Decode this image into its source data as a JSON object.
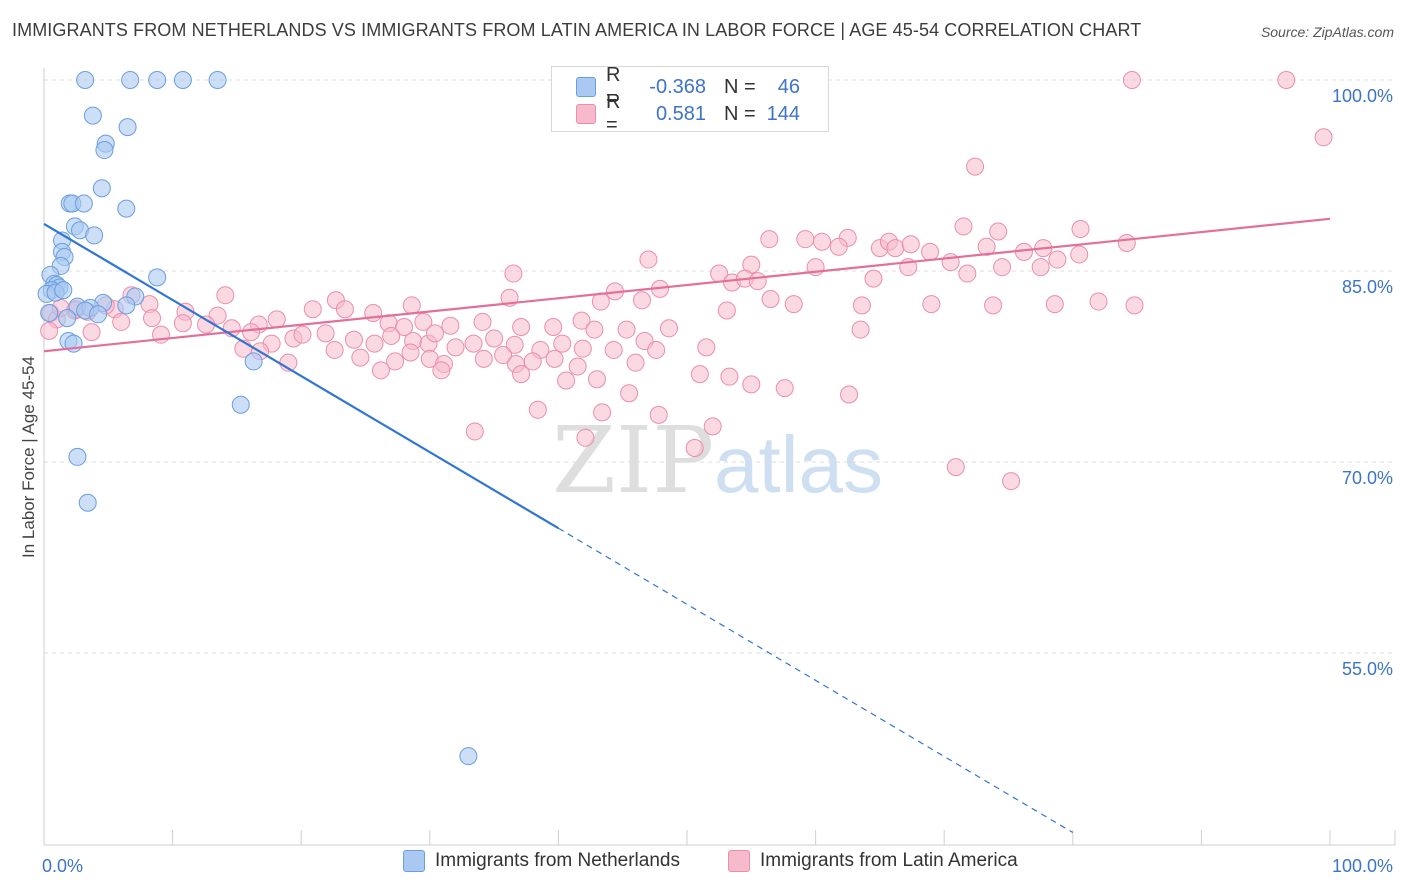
{
  "title": "IMMIGRANTS FROM NETHERLANDS VS IMMIGRANTS FROM LATIN AMERICA IN LABOR FORCE | AGE 45-54 CORRELATION CHART",
  "source": "Source: ZipAtlas.com",
  "watermark": {
    "zip": "ZIP",
    "atlas": "atlas"
  },
  "colors": {
    "netherlands_fill": "#aac9f2",
    "netherlands_stroke": "#6a9ee0",
    "netherlands_line": "#2f75d3",
    "latin_fill": "#f7b9cc",
    "latin_stroke": "#ea8eab",
    "latin_line": "#e2709a",
    "tick_label": "#3d74c8",
    "grid": "#dddddd"
  },
  "legend": {
    "rows": [
      {
        "label": "R =",
        "r": "-0.368",
        "n_label": "N =",
        "n": "46"
      },
      {
        "label": "R =",
        "r": "0.581",
        "n_label": "N =",
        "n": "144"
      }
    ]
  },
  "bottom_legend": [
    "Immigrants from Netherlands",
    "Immigrants from Latin America"
  ],
  "chart_data": {
    "type": "scatter",
    "title": "IMMIGRANTS FROM NETHERLANDS VS IMMIGRANTS FROM LATIN AMERICA IN LABOR FORCE | AGE 45-54 CORRELATION CHART",
    "xlabel": "",
    "ylabel": "In Labor Force | Age 45-54",
    "xlim": [
      0,
      100
    ],
    "ylim": [
      40,
      102
    ],
    "x_tick_labels": [
      {
        "value": 0,
        "label": "0.0%"
      },
      {
        "value": 100,
        "label": "100.0%"
      }
    ],
    "y_ticks": [
      {
        "value": 100,
        "label": "100.0%"
      },
      {
        "value": 85,
        "label": "85.0%"
      },
      {
        "value": 70,
        "label": "70.0%"
      },
      {
        "value": 55,
        "label": "55.0%"
      }
    ],
    "grid": true,
    "legend_position": "top-center",
    "series": [
      {
        "name": "Immigrants from Netherlands",
        "r": -0.368,
        "n": 46,
        "trend": {
          "x0": 0,
          "y0": 88.7,
          "x1": 40,
          "y1": 64.8,
          "dashed_to_x": 80
        },
        "points": [
          [
            3.2,
            100
          ],
          [
            6.7,
            100
          ],
          [
            8.8,
            100
          ],
          [
            10.8,
            100
          ],
          [
            13.5,
            100
          ],
          [
            3.8,
            97.2
          ],
          [
            6.5,
            96.3
          ],
          [
            4.8,
            95.0
          ],
          [
            4.7,
            94.5
          ],
          [
            4.5,
            91.5
          ],
          [
            2.0,
            90.3
          ],
          [
            2.2,
            90.3
          ],
          [
            3.1,
            90.3
          ],
          [
            6.4,
            89.9
          ],
          [
            2.4,
            88.5
          ],
          [
            2.8,
            88.2
          ],
          [
            1.4,
            87.4
          ],
          [
            3.9,
            87.8
          ],
          [
            1.4,
            86.5
          ],
          [
            1.6,
            86.1
          ],
          [
            1.3,
            85.4
          ],
          [
            0.5,
            84.7
          ],
          [
            8.8,
            84.5
          ],
          [
            0.8,
            84.0
          ],
          [
            1.0,
            83.9
          ],
          [
            1.2,
            83.7
          ],
          [
            0.6,
            83.5
          ],
          [
            0.2,
            83.2
          ],
          [
            0.9,
            83.3
          ],
          [
            1.5,
            83.5
          ],
          [
            7.1,
            83.0
          ],
          [
            4.6,
            82.5
          ],
          [
            6.4,
            82.3
          ],
          [
            2.6,
            82.2
          ],
          [
            3.6,
            82.1
          ],
          [
            3.2,
            81.9
          ],
          [
            0.4,
            81.7
          ],
          [
            4.2,
            81.6
          ],
          [
            1.8,
            81.3
          ],
          [
            1.9,
            79.5
          ],
          [
            2.3,
            79.3
          ],
          [
            16.3,
            77.9
          ],
          [
            15.3,
            74.5
          ],
          [
            2.6,
            70.4
          ],
          [
            3.4,
            66.8
          ],
          [
            33.0,
            46.9
          ]
        ]
      },
      {
        "name": "Immigrants from Latin America",
        "r": 0.581,
        "n": 144,
        "trend": {
          "x0": 0,
          "y0": 78.7,
          "x1": 100,
          "y1": 89.1
        },
        "points": [
          [
            84.6,
            100
          ],
          [
            96.6,
            100
          ],
          [
            99.5,
            95.5
          ],
          [
            72.4,
            93.2
          ],
          [
            71.5,
            88.5
          ],
          [
            74.2,
            88.1
          ],
          [
            80.6,
            88.3
          ],
          [
            84.2,
            87.2
          ],
          [
            56.4,
            87.5
          ],
          [
            59.2,
            87.5
          ],
          [
            60.5,
            87.3
          ],
          [
            62.5,
            87.6
          ],
          [
            61.8,
            86.9
          ],
          [
            65.0,
            86.8
          ],
          [
            65.7,
            87.3
          ],
          [
            66.2,
            86.8
          ],
          [
            67.4,
            87.1
          ],
          [
            68.9,
            86.5
          ],
          [
            73.3,
            86.9
          ],
          [
            76.2,
            86.5
          ],
          [
            77.7,
            86.8
          ],
          [
            80.5,
            86.3
          ],
          [
            47.0,
            85.9
          ],
          [
            55.0,
            85.5
          ],
          [
            60.0,
            85.3
          ],
          [
            67.2,
            85.3
          ],
          [
            70.5,
            85.7
          ],
          [
            74.5,
            85.3
          ],
          [
            77.5,
            85.3
          ],
          [
            78.8,
            85.9
          ],
          [
            52.5,
            84.8
          ],
          [
            53.5,
            84.1
          ],
          [
            54.5,
            84.4
          ],
          [
            55.5,
            84.2
          ],
          [
            64.5,
            84.4
          ],
          [
            71.8,
            84.8
          ],
          [
            36.5,
            84.8
          ],
          [
            44.4,
            83.4
          ],
          [
            47.9,
            83.6
          ],
          [
            36.2,
            82.9
          ],
          [
            22.7,
            82.7
          ],
          [
            28.6,
            82.3
          ],
          [
            14.1,
            83.1
          ],
          [
            43.3,
            82.6
          ],
          [
            46.5,
            82.7
          ],
          [
            53.1,
            81.9
          ],
          [
            58.3,
            82.4
          ],
          [
            63.6,
            82.3
          ],
          [
            69.0,
            82.4
          ],
          [
            73.8,
            82.3
          ],
          [
            78.6,
            82.4
          ],
          [
            82.0,
            82.6
          ],
          [
            84.8,
            82.3
          ],
          [
            23.4,
            82.0
          ],
          [
            13.5,
            81.5
          ],
          [
            16.7,
            80.8
          ],
          [
            18.1,
            81.2
          ],
          [
            20.9,
            82.0
          ],
          [
            25.6,
            81.7
          ],
          [
            26.8,
            80.9
          ],
          [
            28.0,
            80.6
          ],
          [
            29.5,
            81.0
          ],
          [
            31.6,
            80.7
          ],
          [
            34.1,
            81.0
          ],
          [
            37.1,
            80.6
          ],
          [
            39.6,
            80.6
          ],
          [
            41.8,
            81.1
          ],
          [
            42.8,
            80.4
          ],
          [
            45.3,
            80.4
          ],
          [
            48.6,
            80.5
          ],
          [
            11.0,
            81.8
          ],
          [
            8.2,
            82.4
          ],
          [
            10.8,
            80.9
          ],
          [
            5.5,
            82.0
          ],
          [
            4.8,
            82.3
          ],
          [
            6.8,
            83.1
          ],
          [
            2.4,
            81.9
          ],
          [
            2.5,
            82.0
          ],
          [
            3.4,
            81.8
          ],
          [
            0.5,
            81.7
          ],
          [
            1.0,
            81.2
          ],
          [
            0.4,
            80.3
          ],
          [
            1.3,
            82.1
          ],
          [
            12.6,
            80.8
          ],
          [
            14.6,
            80.5
          ],
          [
            16.1,
            80.2
          ],
          [
            17.7,
            79.3
          ],
          [
            19.4,
            79.7
          ],
          [
            20.1,
            80.0
          ],
          [
            21.9,
            80.1
          ],
          [
            24.1,
            79.6
          ],
          [
            25.7,
            79.3
          ],
          [
            27.0,
            79.9
          ],
          [
            28.7,
            79.5
          ],
          [
            29.9,
            79.3
          ],
          [
            30.4,
            80.1
          ],
          [
            32.0,
            79.0
          ],
          [
            33.4,
            79.3
          ],
          [
            35.0,
            79.7
          ],
          [
            36.6,
            79.2
          ],
          [
            38.6,
            78.8
          ],
          [
            40.3,
            79.3
          ],
          [
            41.9,
            78.9
          ],
          [
            44.3,
            78.8
          ],
          [
            46.7,
            79.5
          ],
          [
            47.6,
            78.8
          ],
          [
            51.5,
            79.0
          ],
          [
            16.8,
            78.7
          ],
          [
            22.6,
            78.8
          ],
          [
            24.6,
            78.2
          ],
          [
            27.3,
            77.9
          ],
          [
            28.5,
            78.6
          ],
          [
            30.0,
            78.1
          ],
          [
            31.1,
            77.7
          ],
          [
            34.2,
            78.1
          ],
          [
            35.7,
            78.4
          ],
          [
            36.7,
            77.7
          ],
          [
            38.0,
            77.9
          ],
          [
            39.7,
            78.1
          ],
          [
            41.5,
            77.5
          ],
          [
            46.0,
            77.8
          ],
          [
            30.9,
            77.2
          ],
          [
            37.1,
            76.9
          ],
          [
            43.0,
            76.5
          ],
          [
            55.0,
            76.1
          ],
          [
            57.6,
            75.8
          ],
          [
            62.6,
            75.3
          ],
          [
            70.9,
            69.6
          ],
          [
            75.2,
            68.5
          ],
          [
            38.4,
            74.1
          ],
          [
            43.4,
            73.9
          ],
          [
            47.8,
            73.7
          ],
          [
            52.0,
            72.8
          ],
          [
            33.5,
            72.4
          ],
          [
            42.1,
            71.9
          ],
          [
            50.6,
            71.1
          ],
          [
            56.5,
            82.8
          ],
          [
            63.5,
            80.4
          ],
          [
            8.4,
            81.3
          ],
          [
            9.1,
            80.0
          ],
          [
            15.5,
            78.9
          ],
          [
            19.0,
            77.8
          ],
          [
            26.2,
            77.2
          ],
          [
            40.6,
            76.4
          ],
          [
            45.5,
            75.4
          ],
          [
            51.0,
            76.9
          ],
          [
            53.3,
            76.7
          ],
          [
            6.0,
            81.0
          ],
          [
            3.7,
            80.2
          ]
        ]
      }
    ]
  }
}
